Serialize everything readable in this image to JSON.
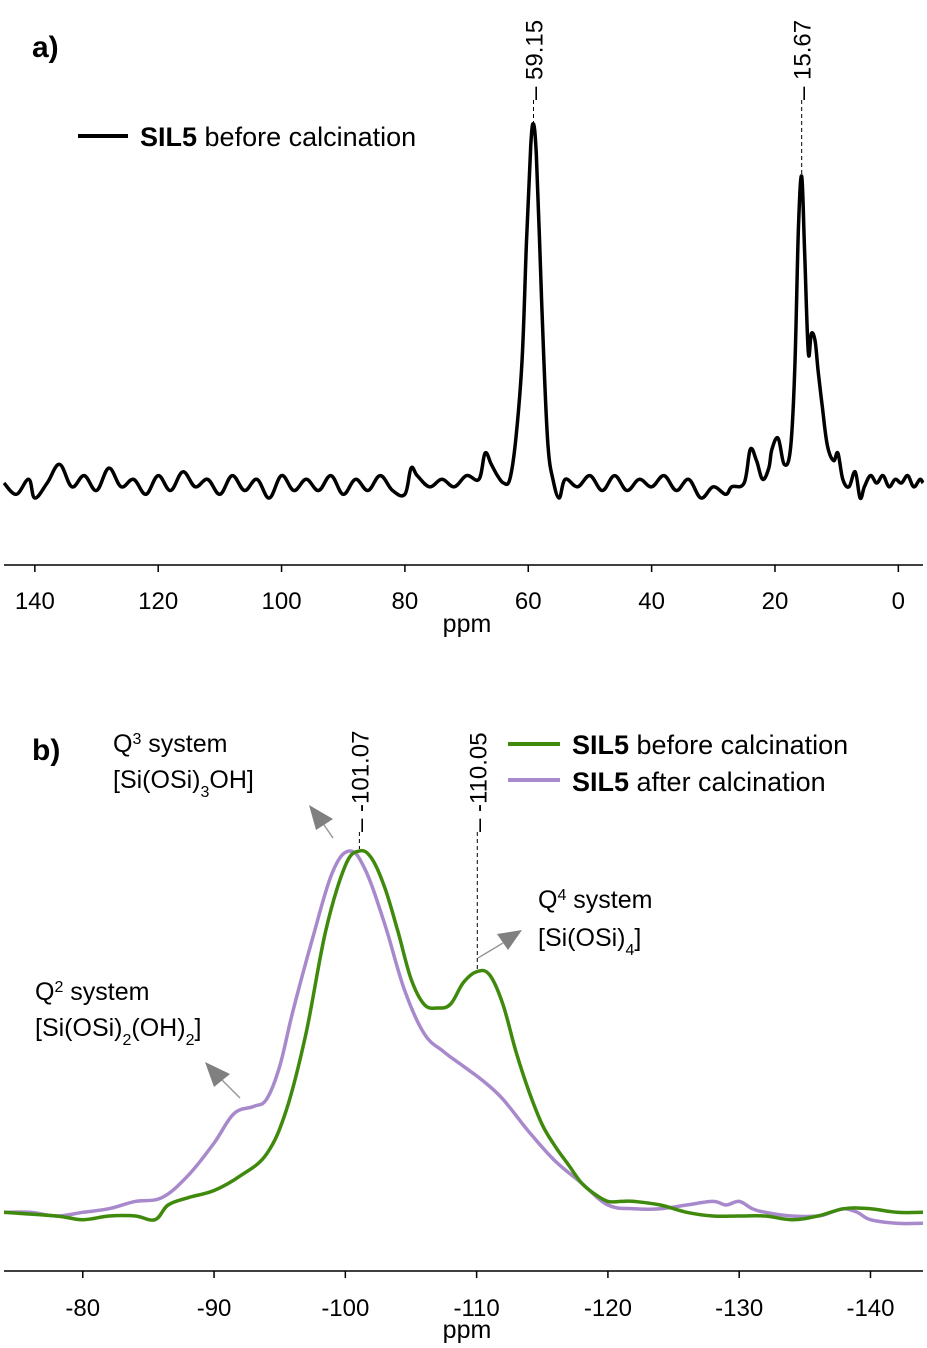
{
  "chart_data": [
    {
      "type": "line",
      "panel_label": "a)",
      "xlabel": "ppm",
      "ylabel": "",
      "xlim": [
        145,
        -4
      ],
      "x_reversed": true,
      "xticks": [
        140,
        120,
        100,
        80,
        60,
        40,
        20,
        0
      ],
      "grid": false,
      "legend": {
        "position": "top-left",
        "entries": [
          {
            "bold": "SIL5",
            "rest": " before calcination",
            "color": "#000000"
          }
        ]
      },
      "peak_labels": [
        {
          "x": 59.15,
          "text": "59.15"
        },
        {
          "x": 15.67,
          "text": "15.67"
        }
      ],
      "series": [
        {
          "name": "SIL5 before calcination",
          "color": "#000000",
          "points": [
            [
              145,
              0.04
            ],
            [
              143,
              0.01
            ],
            [
              141,
              0.05
            ],
            [
              140,
              0.0
            ],
            [
              138,
              0.04
            ],
            [
              136,
              0.09
            ],
            [
              134,
              0.03
            ],
            [
              132,
              0.06
            ],
            [
              130,
              0.02
            ],
            [
              128,
              0.08
            ],
            [
              126,
              0.03
            ],
            [
              124,
              0.05
            ],
            [
              122,
              0.01
            ],
            [
              120,
              0.06
            ],
            [
              118,
              0.02
            ],
            [
              116,
              0.07
            ],
            [
              114,
              0.03
            ],
            [
              112,
              0.05
            ],
            [
              110,
              0.01
            ],
            [
              108,
              0.06
            ],
            [
              106,
              0.02
            ],
            [
              104,
              0.05
            ],
            [
              102,
              0.0
            ],
            [
              100,
              0.06
            ],
            [
              98,
              0.02
            ],
            [
              96,
              0.05
            ],
            [
              94,
              0.02
            ],
            [
              92,
              0.06
            ],
            [
              90,
              0.01
            ],
            [
              88,
              0.05
            ],
            [
              86,
              0.02
            ],
            [
              84,
              0.06
            ],
            [
              82,
              0.02
            ],
            [
              80,
              0.01
            ],
            [
              79,
              0.08
            ],
            [
              78,
              0.06
            ],
            [
              76,
              0.03
            ],
            [
              74,
              0.05
            ],
            [
              72,
              0.03
            ],
            [
              70,
              0.06
            ],
            [
              68,
              0.05
            ],
            [
              67,
              0.12
            ],
            [
              66,
              0.09
            ],
            [
              65,
              0.06
            ],
            [
              64,
              0.04
            ],
            [
              63,
              0.05
            ],
            [
              62,
              0.16
            ],
            [
              61,
              0.37
            ],
            [
              60.3,
              0.68
            ],
            [
              59.6,
              0.94
            ],
            [
              59.15,
              1.0
            ],
            [
              58.7,
              0.92
            ],
            [
              58.2,
              0.7
            ],
            [
              57.5,
              0.38
            ],
            [
              56.8,
              0.14
            ],
            [
              56,
              0.05
            ],
            [
              55,
              0.0
            ],
            [
              54,
              0.05
            ],
            [
              52,
              0.03
            ],
            [
              50,
              0.06
            ],
            [
              48,
              0.02
            ],
            [
              46,
              0.06
            ],
            [
              44,
              0.02
            ],
            [
              42,
              0.05
            ],
            [
              40,
              0.03
            ],
            [
              38,
              0.06
            ],
            [
              36,
              0.02
            ],
            [
              34,
              0.05
            ],
            [
              32,
              0.0
            ],
            [
              30,
              0.03
            ],
            [
              28,
              0.01
            ],
            [
              27,
              0.03
            ],
            [
              25,
              0.04
            ],
            [
              24,
              0.13
            ],
            [
              23,
              0.1
            ],
            [
              22,
              0.05
            ],
            [
              21,
              0.08
            ],
            [
              20.5,
              0.13
            ],
            [
              19.5,
              0.16
            ],
            [
              18.5,
              0.09
            ],
            [
              17.5,
              0.13
            ],
            [
              16.8,
              0.34
            ],
            [
              16.2,
              0.72
            ],
            [
              15.67,
              0.86
            ],
            [
              15.2,
              0.66
            ],
            [
              14.6,
              0.39
            ],
            [
              14.1,
              0.44
            ],
            [
              13.5,
              0.42
            ],
            [
              13,
              0.34
            ],
            [
              12.3,
              0.24
            ],
            [
              11.5,
              0.14
            ],
            [
              10.5,
              0.1
            ],
            [
              9.8,
              0.12
            ],
            [
              9,
              0.05
            ],
            [
              8,
              0.03
            ],
            [
              7,
              0.07
            ],
            [
              6.2,
              0.0
            ],
            [
              5.5,
              0.03
            ],
            [
              4.5,
              0.06
            ],
            [
              3.5,
              0.04
            ],
            [
              2.5,
              0.06
            ],
            [
              1.5,
              0.03
            ],
            [
              0.5,
              0.05
            ],
            [
              -0.5,
              0.04
            ],
            [
              -1.5,
              0.06
            ],
            [
              -2.5,
              0.03
            ],
            [
              -3.5,
              0.05
            ],
            [
              -4,
              0.04
            ]
          ]
        }
      ]
    },
    {
      "type": "line",
      "panel_label": "b)",
      "xlabel": "ppm",
      "ylabel": "",
      "xlim": [
        -74,
        -144
      ],
      "x_reversed": true,
      "xticks": [
        -80,
        -90,
        -100,
        -110,
        -120,
        -130,
        -140
      ],
      "grid": false,
      "legend": {
        "position": "top-right",
        "entries": [
          {
            "bold": "SIL5",
            "rest": " before calcination",
            "color": "#3f8a0c"
          },
          {
            "bold": "SIL5",
            "rest": " after calcination",
            "color": "#a889cc"
          }
        ]
      },
      "peak_labels": [
        {
          "x": -101.07,
          "text": "-101.07"
        },
        {
          "x": -110.05,
          "text": "-110.05"
        }
      ],
      "annotations": [
        {
          "line1_q": "Q",
          "line1_sup": "3",
          "line1_rest": " system",
          "line2": "[Si(OSi)",
          "line2_sub": "3",
          "line2_rest": "OH]"
        },
        {
          "line1_q": "Q",
          "line1_sup": "4",
          "line1_rest": " system",
          "line2": "[Si(OSi)",
          "line2_sub": "4",
          "line2_rest": "]"
        },
        {
          "line1_q": "Q",
          "line1_sup": "2",
          "line1_rest": " system",
          "line2": "[Si(OSi)",
          "line2_sub": "2",
          "line2_rest": "(OH)",
          "line2_sub2": "2",
          "line2_end": "]"
        }
      ],
      "series": [
        {
          "name": "SIL5 before calcination",
          "color": "#3f8a0c",
          "points": [
            [
              -74,
              0.01
            ],
            [
              -78,
              0.0
            ],
            [
              -80,
              -0.01
            ],
            [
              -82,
              0.0
            ],
            [
              -84,
              0.0
            ],
            [
              -85.5,
              -0.01
            ],
            [
              -86.5,
              0.03
            ],
            [
              -88,
              0.05
            ],
            [
              -90,
              0.07
            ],
            [
              -92,
              0.11
            ],
            [
              -94,
              0.17
            ],
            [
              -95.5,
              0.29
            ],
            [
              -97,
              0.5
            ],
            [
              -98.5,
              0.78
            ],
            [
              -100,
              0.96
            ],
            [
              -101.07,
              1.0
            ],
            [
              -102,
              0.98
            ],
            [
              -103,
              0.9
            ],
            [
              -104,
              0.78
            ],
            [
              -105,
              0.65
            ],
            [
              -106,
              0.58
            ],
            [
              -107,
              0.57
            ],
            [
              -108,
              0.58
            ],
            [
              -109,
              0.64
            ],
            [
              -110.05,
              0.67
            ],
            [
              -111,
              0.66
            ],
            [
              -112,
              0.58
            ],
            [
              -113,
              0.45
            ],
            [
              -114,
              0.34
            ],
            [
              -115,
              0.25
            ],
            [
              -116,
              0.19
            ],
            [
              -117,
              0.14
            ],
            [
              -118,
              0.09
            ],
            [
              -119,
              0.06
            ],
            [
              -120,
              0.04
            ],
            [
              -121,
              0.04
            ],
            [
              -122,
              0.04
            ],
            [
              -124,
              0.03
            ],
            [
              -126,
              0.01
            ],
            [
              -128,
              0.0
            ],
            [
              -130,
              0.0
            ],
            [
              -132,
              0.0
            ],
            [
              -134,
              -0.01
            ],
            [
              -136,
              0.0
            ],
            [
              -138,
              0.02
            ],
            [
              -140,
              0.02
            ],
            [
              -142,
              0.01
            ],
            [
              -144,
              0.01
            ]
          ]
        },
        {
          "name": "SIL5 after calcination",
          "color": "#a889cc",
          "points": [
            [
              -74,
              0.01
            ],
            [
              -76,
              0.01
            ],
            [
              -78,
              0.0
            ],
            [
              -80,
              0.01
            ],
            [
              -82,
              0.02
            ],
            [
              -84,
              0.04
            ],
            [
              -86,
              0.05
            ],
            [
              -88,
              0.11
            ],
            [
              -90,
              0.2
            ],
            [
              -91.5,
              0.28
            ],
            [
              -93,
              0.3
            ],
            [
              -94,
              0.32
            ],
            [
              -95,
              0.41
            ],
            [
              -96,
              0.56
            ],
            [
              -97.5,
              0.76
            ],
            [
              -99,
              0.94
            ],
            [
              -100.3,
              1.0
            ],
            [
              -101.5,
              0.95
            ],
            [
              -103,
              0.8
            ],
            [
              -104.5,
              0.62
            ],
            [
              -106,
              0.5
            ],
            [
              -107.5,
              0.45
            ],
            [
              -109,
              0.41
            ],
            [
              -110.5,
              0.37
            ],
            [
              -112,
              0.32
            ],
            [
              -114,
              0.23
            ],
            [
              -116,
              0.15
            ],
            [
              -118,
              0.09
            ],
            [
              -120,
              0.03
            ],
            [
              -122,
              0.02
            ],
            [
              -124,
              0.02
            ],
            [
              -126,
              0.03
            ],
            [
              -128,
              0.04
            ],
            [
              -129,
              0.03
            ],
            [
              -130,
              0.04
            ],
            [
              -131,
              0.02
            ],
            [
              -132,
              0.01
            ],
            [
              -134,
              0.0
            ],
            [
              -136,
              0.0
            ],
            [
              -137,
              0.01
            ],
            [
              -138,
              0.02
            ],
            [
              -139,
              0.01
            ],
            [
              -140,
              -0.01
            ],
            [
              -142,
              -0.02
            ],
            [
              -144,
              -0.02
            ]
          ]
        }
      ]
    }
  ]
}
